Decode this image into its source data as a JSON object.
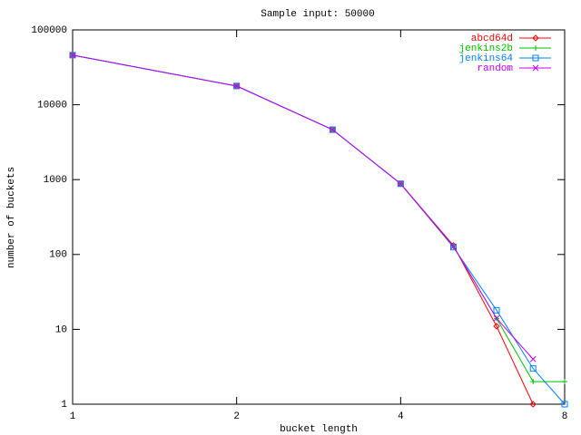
{
  "chart_data": {
    "type": "line",
    "title": "Sample input: 50000",
    "x_label": "bucket length",
    "y_label": "number of buckets",
    "x": [
      1,
      2,
      3,
      4,
      5,
      6,
      7,
      8
    ],
    "xlim": [
      1,
      8
    ],
    "xticks": [
      1,
      2,
      4,
      8
    ],
    "x_log_base": 2,
    "ylim": [
      1,
      100000
    ],
    "yticks": [
      1,
      10,
      100,
      1000,
      10000,
      100000
    ],
    "y_log_base": 10,
    "legend": "top-right",
    "series": [
      {
        "name": "abcd64d",
        "color": "#ff0000",
        "marker": "diamond",
        "values": [
          46000,
          17800,
          4650,
          880,
          132,
          11,
          1,
          null
        ]
      },
      {
        "name": "jenkins2b",
        "color": "#00c000",
        "marker": "plus",
        "values": [
          46000,
          17800,
          4650,
          880,
          128,
          14,
          2,
          2
        ]
      },
      {
        "name": "jenkins64",
        "color": "#0080ff",
        "marker": "square",
        "values": [
          46000,
          17800,
          4650,
          880,
          125,
          18,
          3,
          1
        ]
      },
      {
        "name": "random",
        "color": "#c000ff",
        "marker": "cross",
        "values": [
          46000,
          17800,
          4650,
          880,
          128,
          14,
          4,
          null
        ]
      }
    ]
  }
}
